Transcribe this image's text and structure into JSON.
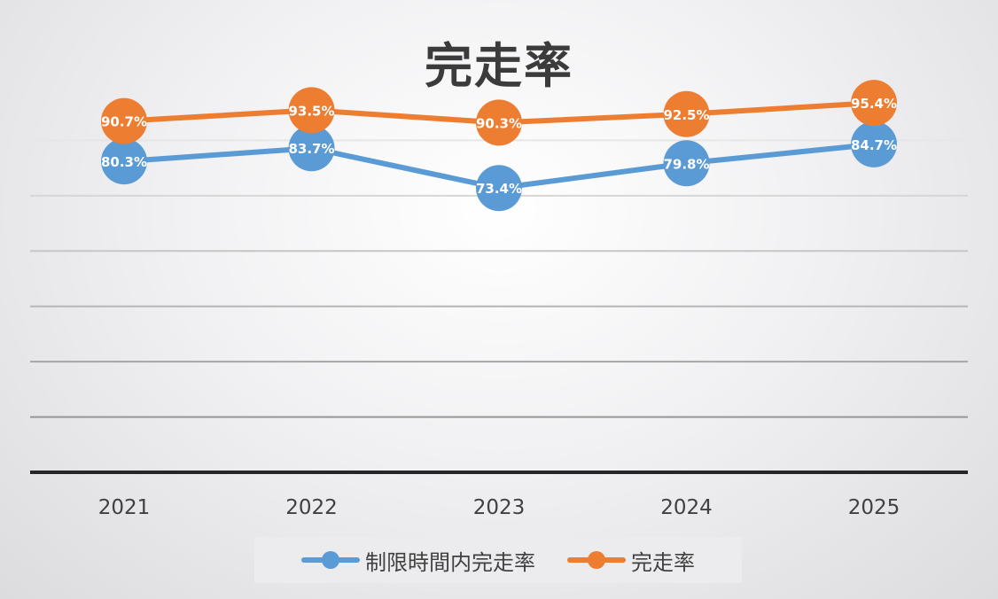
{
  "chart_data": {
    "type": "line",
    "title": "完走率",
    "categories": [
      "2021",
      "2022",
      "2023",
      "2024",
      "2025"
    ],
    "series": [
      {
        "name": "制限時間内完走率",
        "color": "#5b9bd5",
        "values": [
          80.3,
          83.7,
          73.4,
          79.8,
          84.7
        ],
        "labels": [
          "80.3%",
          "83.7%",
          "73.4%",
          "79.8%",
          "84.7%"
        ]
      },
      {
        "name": "完走率",
        "color": "#ed7d31",
        "values": [
          90.7,
          93.5,
          90.3,
          92.5,
          95.4
        ],
        "labels": [
          "90.7%",
          "93.5%",
          "90.3%",
          "92.5%",
          "95.4%"
        ]
      }
    ],
    "ylim": [
      0,
      100
    ],
    "grid": true,
    "legend_position": "bottom"
  }
}
